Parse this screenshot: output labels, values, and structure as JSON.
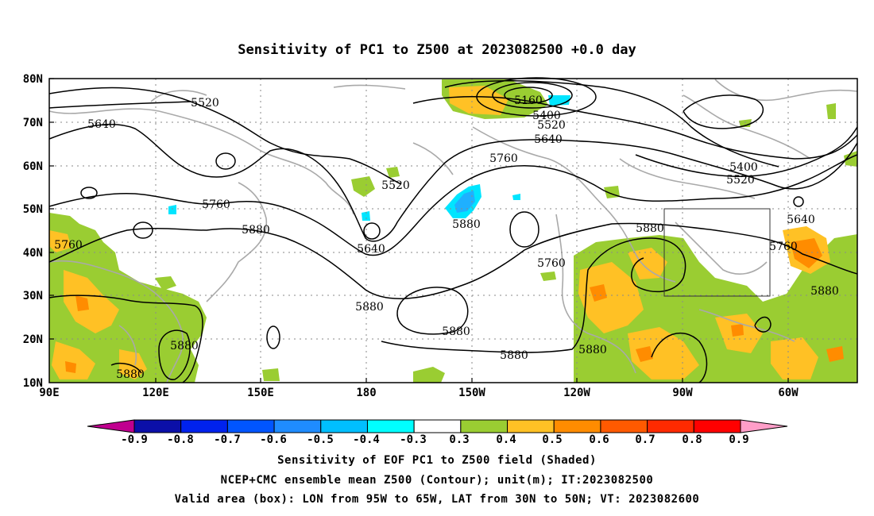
{
  "title": "Sensitivity of PC1 to Z500 at 2023082500 +0.0 day",
  "lat_labels": [
    "80N",
    "70N",
    "60N",
    "50N",
    "40N",
    "30N",
    "20N",
    "10N"
  ],
  "lon_labels": [
    "90E",
    "120E",
    "150E",
    "180",
    "150W",
    "120W",
    "90W",
    "60W"
  ],
  "contour_labels": [
    {
      "text": "5520"
    },
    {
      "text": "5640"
    },
    {
      "text": "5160"
    },
    {
      "text": "5400"
    },
    {
      "text": "5520"
    },
    {
      "text": "5640"
    },
    {
      "text": "5760"
    },
    {
      "text": "5400"
    },
    {
      "text": "5520"
    },
    {
      "text": "5520"
    },
    {
      "text": "5760"
    },
    {
      "text": "5880"
    },
    {
      "text": "5640"
    },
    {
      "text": "5880"
    },
    {
      "text": "5760"
    },
    {
      "text": "5880"
    },
    {
      "text": "5640"
    },
    {
      "text": "5760"
    },
    {
      "text": "5760"
    },
    {
      "text": "5880"
    },
    {
      "text": "5880"
    },
    {
      "text": "5880"
    },
    {
      "text": "5880"
    },
    {
      "text": "5880"
    },
    {
      "text": "5880"
    },
    {
      "text": "5880"
    }
  ],
  "valid_box": {
    "lon_from": "95W",
    "lon_to": "65W",
    "lat_from": "30N",
    "lat_to": "50N"
  },
  "colorbar": {
    "labels": [
      "-0.9",
      "-0.8",
      "-0.7",
      "-0.6",
      "-0.5",
      "-0.4",
      "-0.3",
      "0.3",
      "0.4",
      "0.5",
      "0.6",
      "0.7",
      "0.8",
      "0.9"
    ],
    "colors": [
      "#0b0fa8",
      "#0022ee",
      "#0055ff",
      "#1f8cff",
      "#00bfff",
      "#00ffff",
      "#ffffff",
      "#9acd32",
      "#ffc125",
      "#ff8c00",
      "#ff5a00",
      "#ff2a00",
      "#ff0000"
    ],
    "under_color": "#c0008f",
    "over_color": "#ff9ec8"
  },
  "footer": {
    "line1": "Sensitivity of EOF PC1 to Z500 field (Shaded)",
    "line2": "NCEP+CMC ensemble mean Z500 (Contour); unit(m); IT:2023082500",
    "line3": "Valid area (box): LON from 95W to 65W, LAT from 30N to 50N; VT: 2023082600"
  }
}
